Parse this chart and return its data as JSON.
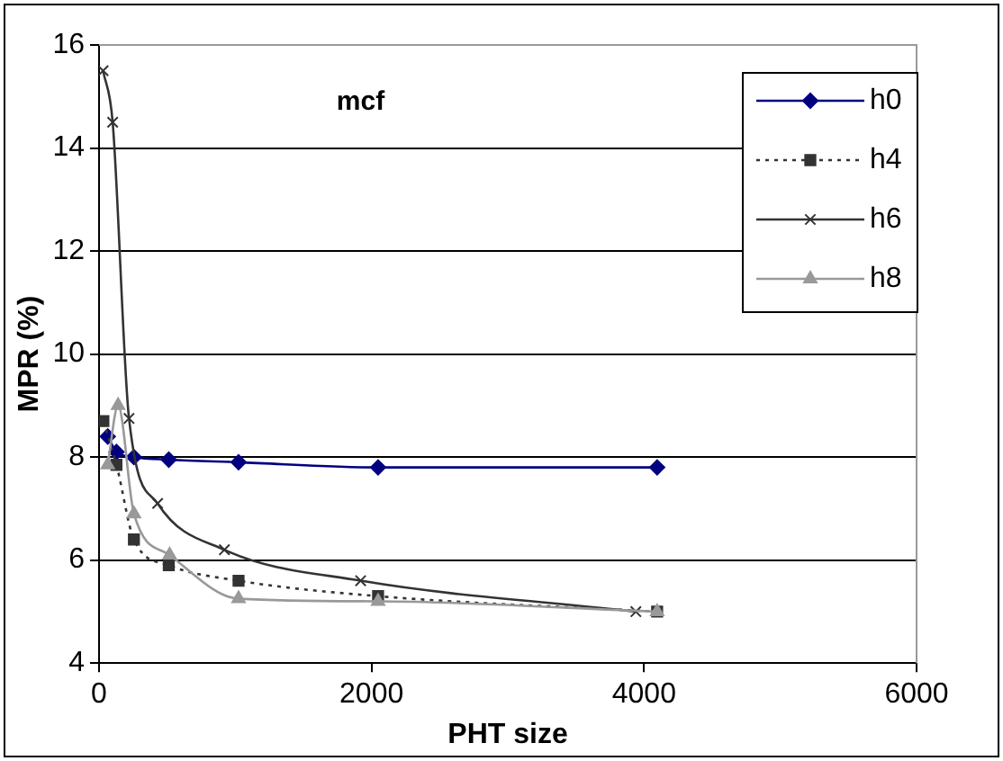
{
  "chart_data": {
    "type": "line",
    "title": "mcf",
    "xlabel": "PHT size",
    "ylabel": "MPR (%)",
    "xlim": [
      0,
      6000
    ],
    "xticks": [
      0,
      2000,
      4000,
      6000
    ],
    "ylim": [
      4,
      16
    ],
    "yticks": [
      4,
      6,
      8,
      10,
      12,
      14,
      16
    ],
    "grid": "y",
    "legend": "top right",
    "series": [
      {
        "name": "h0",
        "color": "#000080",
        "marker": "diamond",
        "line_style": "solid",
        "x": [
          64,
          128,
          256,
          512,
          1024,
          2048,
          4096
        ],
        "values": [
          8.4,
          8.1,
          8.0,
          7.95,
          7.9,
          7.8,
          7.8
        ]
      },
      {
        "name": "h4",
        "color": "#333333",
        "marker": "square",
        "line_style": "dotted",
        "x": [
          32,
          128,
          256,
          512,
          1024,
          2048,
          4096
        ],
        "values": [
          8.7,
          7.85,
          6.4,
          5.9,
          5.6,
          5.3,
          5.0
        ]
      },
      {
        "name": "h6",
        "color": "#333333",
        "marker": "cross",
        "line_style": "solid",
        "x": [
          30,
          100,
          220,
          430,
          920,
          1920,
          3940
        ],
        "values": [
          15.5,
          14.5,
          8.75,
          7.1,
          6.2,
          5.6,
          5.0
        ]
      },
      {
        "name": "h8",
        "color": "#999999",
        "marker": "triangle",
        "line_style": "solid",
        "x": [
          64,
          140,
          256,
          518,
          1024,
          2048,
          4096
        ],
        "values": [
          7.85,
          9.0,
          6.9,
          6.1,
          5.25,
          5.2,
          5.0
        ]
      }
    ]
  }
}
